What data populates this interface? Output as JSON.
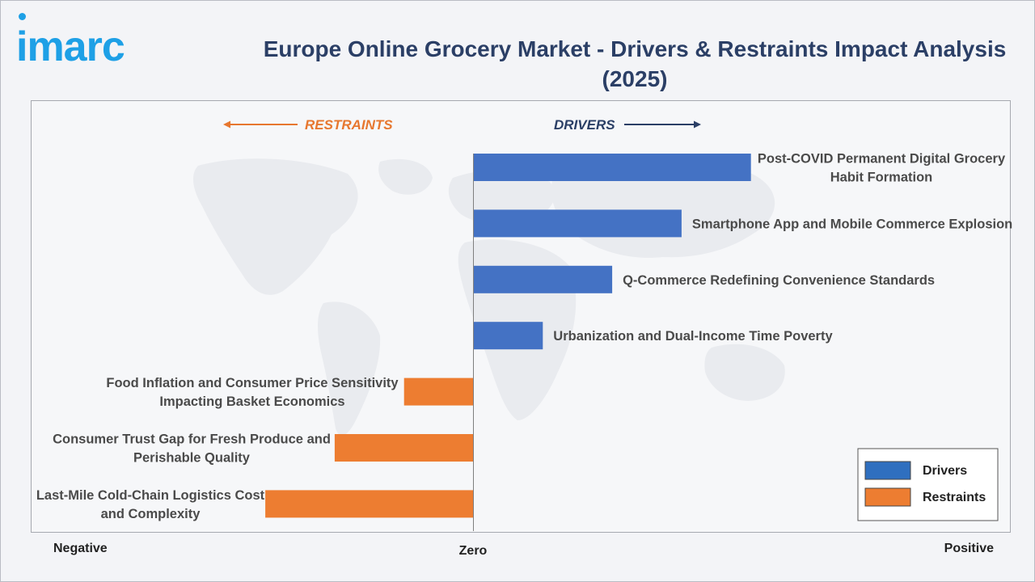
{
  "header": {
    "logo_text": "imarc",
    "title_line1": "Europe Online Grocery Market - Drivers & Restraints Impact Analysis",
    "title_line2": "(2025)"
  },
  "chart_data": {
    "type": "bar",
    "orientation": "horizontal",
    "title": "Europe Online Grocery Market - Drivers & Restraints Impact Analysis (2025)",
    "direction_labels": {
      "left": "RESTRAINTS",
      "right": "DRIVERS"
    },
    "axis_labels": {
      "left": "Negative",
      "center": "Zero",
      "right": "Positive"
    },
    "xlim": [
      -1,
      1
    ],
    "categories": [
      [
        "Post-COVID Permanent Digital Grocery",
        "Habit Formation"
      ],
      [
        "Smartphone App and Mobile Commerce Explosion"
      ],
      [
        "Q-Commerce Redefining Convenience Standards"
      ],
      [
        "Urbanization and Dual-Income Time Poverty"
      ],
      [
        "Food Inflation and Consumer Price Sensitivity",
        "Impacting Basket Economics"
      ],
      [
        "Consumer Trust Gap for Fresh Produce and",
        "Perishable Quality"
      ],
      [
        "Last-Mile Cold-Chain Logistics Cost",
        "and Complexity"
      ]
    ],
    "values": [
      0.52,
      0.39,
      0.26,
      0.13,
      -0.13,
      -0.26,
      -0.39
    ],
    "series": [
      {
        "name": "Drivers",
        "color": "#4472c4"
      },
      {
        "name": "Restraints",
        "color": "#ed7d31"
      }
    ],
    "legend": {
      "position": "bottom-right",
      "entries": [
        "Drivers",
        "Restraints"
      ]
    },
    "grid": false
  },
  "colors": {
    "drivers": "#4472c4",
    "restraints": "#ed7d31",
    "drivers_arrow": "#2b3f66",
    "restraints_arrow": "#e7772f",
    "legend_drivers_swatch": "#2f6fbf"
  }
}
